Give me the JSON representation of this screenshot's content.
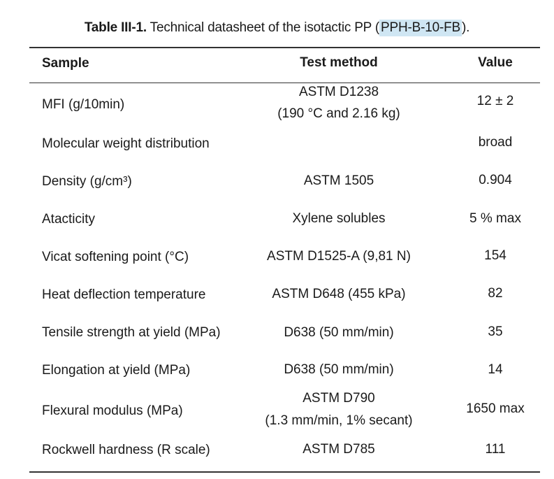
{
  "caption": {
    "lead": "Table III-1.",
    "text_before": " Technical datasheet of the isotactic PP (",
    "highlight": "PPH-B-10-FB",
    "text_after": ")."
  },
  "table": {
    "headers": [
      "Sample",
      "Test method",
      "Value"
    ],
    "rows": [
      {
        "sample": "MFI (g/10min)",
        "method": "ASTM D1238",
        "method2": "(190 °C and 2.16 kg)",
        "value": "12 ± 2"
      },
      {
        "sample": "Molecular weight distribution",
        "method": "",
        "method2": "",
        "value": "broad"
      },
      {
        "sample": "Density (g/cm³)",
        "method": "ASTM 1505",
        "method2": "",
        "value": "0.904"
      },
      {
        "sample": "Atacticity",
        "method": "Xylene solubles",
        "method2": "",
        "value": "5 % max"
      },
      {
        "sample": "Vicat softening point (°C)",
        "method": "ASTM D1525-A (9,81 N)",
        "method2": "",
        "value": "154"
      },
      {
        "sample": "Heat deflection temperature",
        "method": "ASTM D648 (455 kPa)",
        "method2": "",
        "value": "82"
      },
      {
        "sample": "Tensile strength at yield (MPa)",
        "method": "D638 (50 mm/min)",
        "method2": "",
        "value": "35"
      },
      {
        "sample": "Elongation at yield (MPa)",
        "method": "D638 (50 mm/min)",
        "method2": "",
        "value": "14"
      },
      {
        "sample": "Flexural modulus (MPa)",
        "method": "ASTM D790",
        "method2": "(1.3 mm/min, 1% secant)",
        "value": "1650 max"
      },
      {
        "sample": "Rockwell hardness (R scale)",
        "method": "ASTM D785",
        "method2": "",
        "value": "111"
      }
    ]
  }
}
